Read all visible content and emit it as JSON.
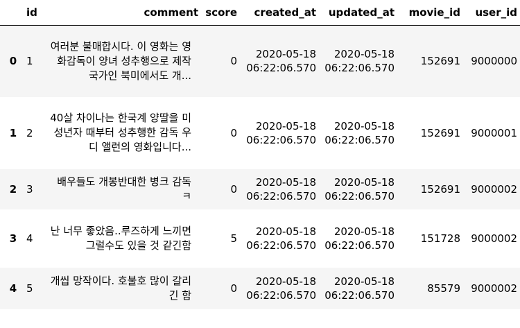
{
  "table": {
    "index_header": "",
    "columns": [
      "id",
      "comment",
      "score",
      "created_at",
      "updated_at",
      "movie_id",
      "user_id"
    ],
    "rows": [
      {
        "index": "0",
        "id": "1",
        "comment": "여러분 불매합시다. 이 영화는 영화감독이 양녀 성추행으로 제작 국가인 북미에서도 개...",
        "score": "0",
        "created_at": "2020-05-18 06:22:06.570",
        "updated_at": "2020-05-18 06:22:06.570",
        "movie_id": "152691",
        "user_id": "9000000"
      },
      {
        "index": "1",
        "id": "2",
        "comment": "40살 차이나는 한국계 양딸을 미성년자 때부터 성추행한 감독 우디 앨런의 영화입니다...",
        "score": "0",
        "created_at": "2020-05-18 06:22:06.570",
        "updated_at": "2020-05-18 06:22:06.570",
        "movie_id": "152691",
        "user_id": "9000001"
      },
      {
        "index": "2",
        "id": "3",
        "comment": "배우들도 개봉반대한 병크 감독 ㅋ",
        "score": "0",
        "created_at": "2020-05-18 06:22:06.570",
        "updated_at": "2020-05-18 06:22:06.570",
        "movie_id": "152691",
        "user_id": "9000002"
      },
      {
        "index": "3",
        "id": "4",
        "comment": "난 너무 좋았음..루즈하게 느끼면 그럴수도 있을 것 같긴함",
        "score": "5",
        "created_at": "2020-05-18 06:22:06.570",
        "updated_at": "2020-05-18 06:22:06.570",
        "movie_id": "151728",
        "user_id": "9000002"
      },
      {
        "index": "4",
        "id": "5",
        "comment": "개씹 망작이다. 호불호 많이 갈리긴 함",
        "score": "0",
        "created_at": "2020-05-18 06:22:06.570",
        "updated_at": "2020-05-18 06:22:06.570",
        "movie_id": "85579",
        "user_id": "9000002"
      }
    ]
  }
}
